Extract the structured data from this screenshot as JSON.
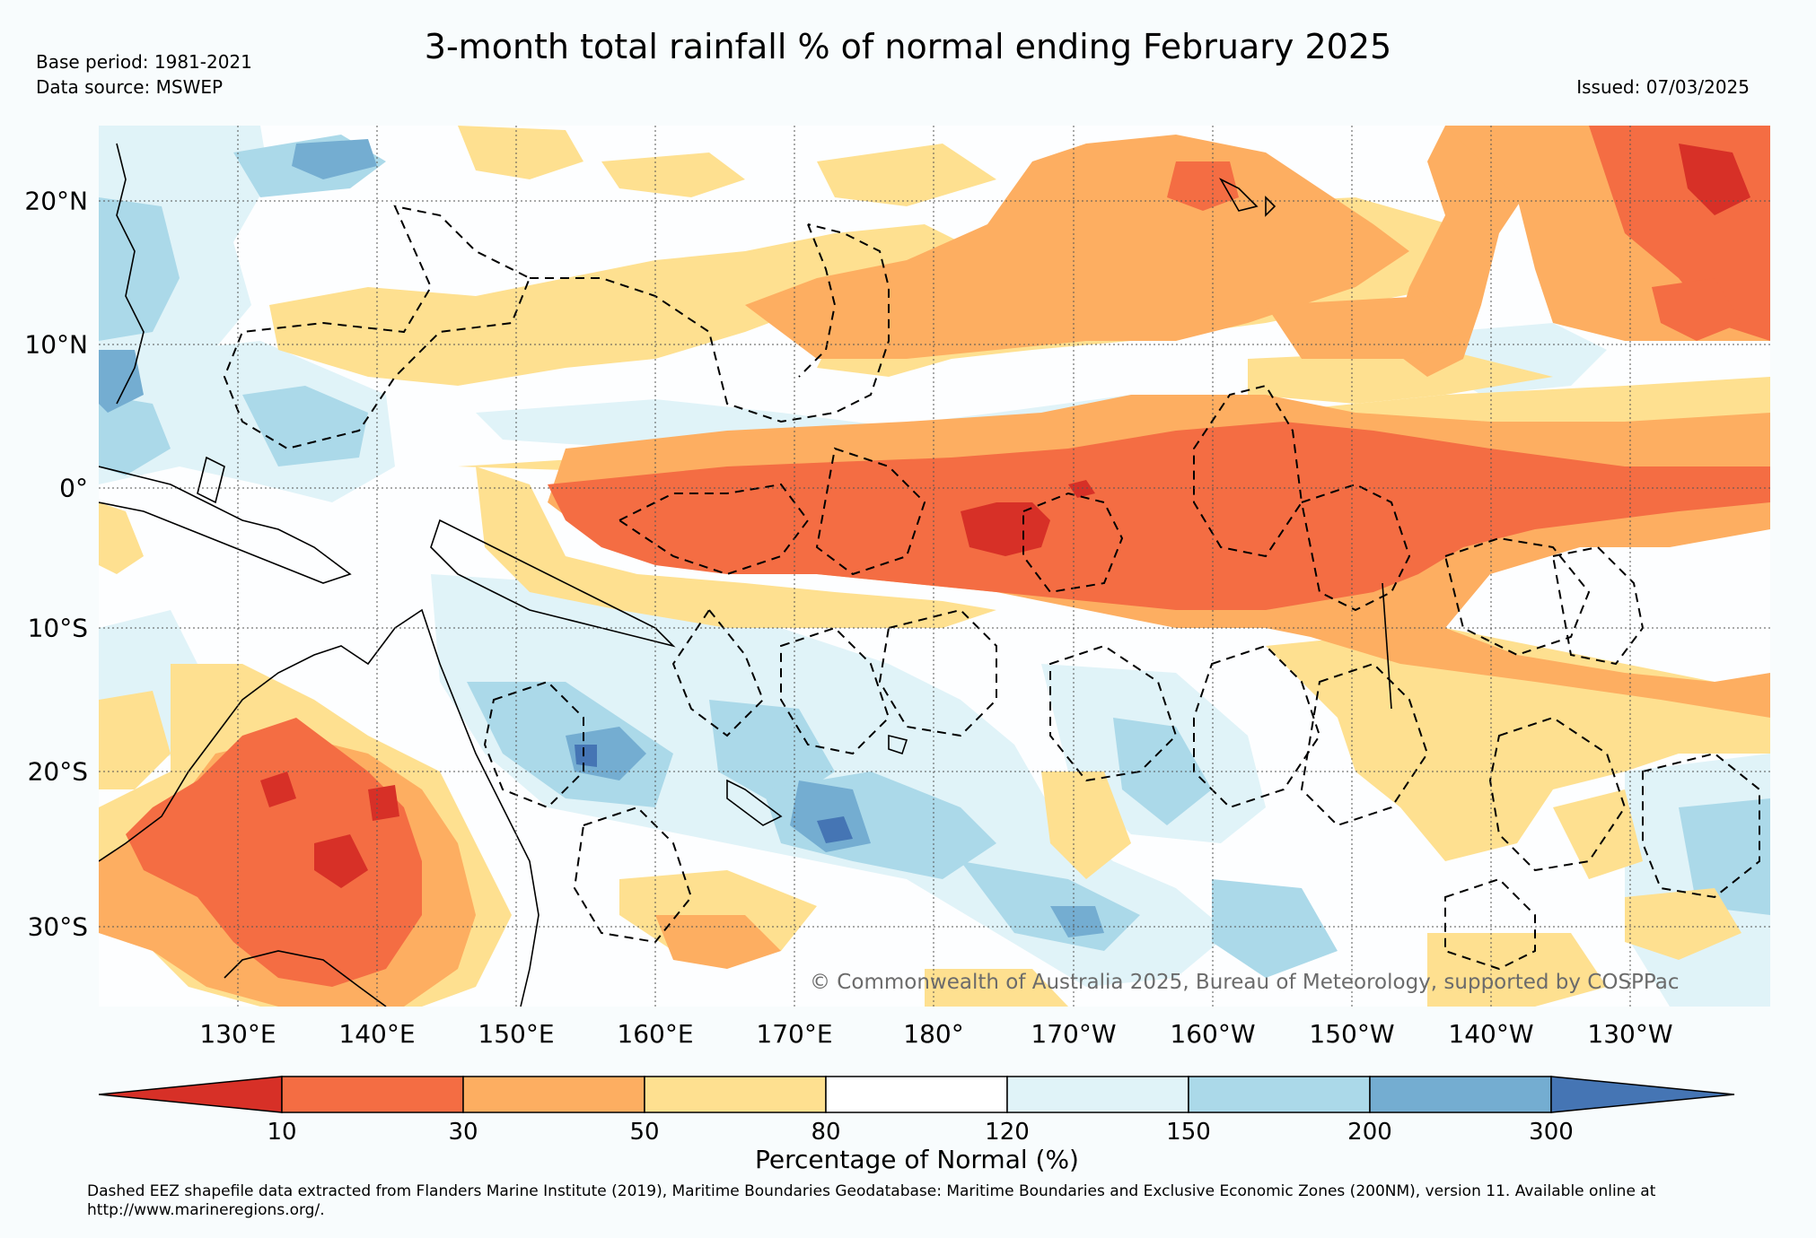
{
  "title": "3-month total rainfall % of normal ending February 2025",
  "base_period": "Base period: 1981-2021",
  "data_source": "Data source: MSWEP",
  "issued": "Issued: 07/03/2025",
  "copyright": "© Commonwealth of Australia 2025, Bureau of Meteorology, supported by COSPPac",
  "longitude_ticks": [
    "130°E",
    "140°E",
    "150°E",
    "160°E",
    "170°E",
    "180°",
    "170°W",
    "160°W",
    "150°W",
    "140°W",
    "130°W"
  ],
  "latitude_ticks": [
    "20°N",
    "10°N",
    "0°",
    "10°S",
    "20°S",
    "30°S"
  ],
  "colorbar": {
    "title": "Percentage of Normal (%)",
    "labels": [
      "10",
      "30",
      "50",
      "80",
      "120",
      "150",
      "200",
      "300"
    ],
    "colors": [
      "#d73027",
      "#f46d43",
      "#fdae61",
      "#fee090",
      "#ffffff",
      "#e0f3f8",
      "#abd9e9",
      "#74add1",
      "#4575b4"
    ]
  },
  "footnote": "Dashed EEZ shapefile data extracted from Flanders Marine Institute (2019), Maritime Boundaries Geodatabase: Maritime Boundaries and Exclusive Economic Zones (200NM), version 11. Available online at http://www.marineregions.org/."
}
